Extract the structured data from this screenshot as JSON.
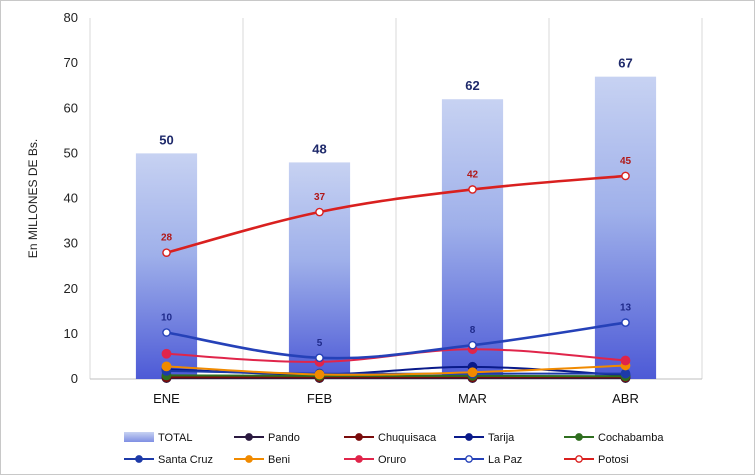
{
  "chart_data": {
    "type": "bar",
    "categories": [
      "ENE",
      "FEB",
      "MAR",
      "ABR"
    ],
    "ylabel": "En MILLONES DE Bs.",
    "ylim": [
      0,
      80
    ],
    "yticks": [
      0,
      10,
      20,
      30,
      40,
      50,
      60,
      70,
      80
    ],
    "grid": "vertical",
    "legend_position": "bottom",
    "series": [
      {
        "name": "TOTAL",
        "kind": "bar",
        "color": "#4d5ad6",
        "values": [
          50,
          48,
          62,
          67
        ],
        "labels": [
          "50",
          "48",
          "62",
          "67"
        ]
      },
      {
        "name": "Pando",
        "kind": "line",
        "color": "#2b1a40",
        "values": [
          0.2,
          0.2,
          0.2,
          0.2
        ]
      },
      {
        "name": "Chuquisaca",
        "kind": "line",
        "color": "#7a0c0c",
        "values": [
          0.4,
          0.4,
          0.4,
          0.4
        ]
      },
      {
        "name": "Tarija",
        "kind": "line",
        "color": "#0a1a8a",
        "values": [
          2.2,
          1.0,
          2.7,
          0.8
        ]
      },
      {
        "name": "Cochabamba",
        "kind": "line",
        "color": "#2f6e1f",
        "values": [
          0.8,
          0.7,
          0.7,
          0.6
        ]
      },
      {
        "name": "Santa Cruz",
        "kind": "line",
        "color": "#1d3aa8",
        "values": [
          1.8,
          1.2,
          1.2,
          1.2
        ]
      },
      {
        "name": "Beni",
        "kind": "line",
        "color": "#f08a00",
        "values": [
          2.8,
          1.0,
          1.5,
          3.0
        ]
      },
      {
        "name": "Oruro",
        "kind": "line",
        "color": "#e0254a",
        "values": [
          5.6,
          3.8,
          6.6,
          4.1
        ]
      },
      {
        "name": "La Paz",
        "kind": "line",
        "color": "#2541b8",
        "values": [
          10.3,
          4.7,
          7.5,
          12.5
        ],
        "labels": [
          "10",
          "5",
          "8",
          "13"
        ],
        "label_color": "#1f2a8a"
      },
      {
        "name": "Potosi",
        "kind": "line",
        "color": "#d9201f",
        "values": [
          28,
          37,
          42,
          45
        ],
        "labels": [
          "28",
          "37",
          "42",
          "45"
        ],
        "label_color": "#b01818"
      }
    ]
  }
}
